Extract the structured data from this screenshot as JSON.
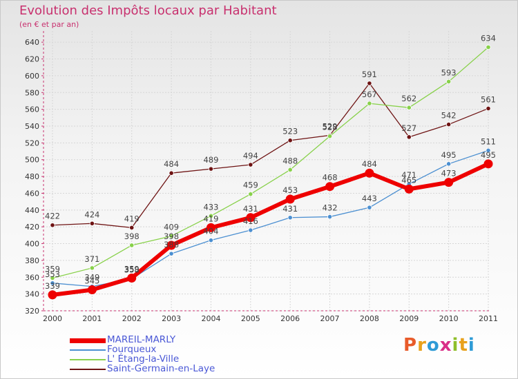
{
  "title": "Evolution des Impôts locaux par Habitant",
  "subtitle": "(en € et par an)",
  "logo": {
    "text": "Proxiti",
    "letter_colors": [
      "#e85b2a",
      "#e8a11c",
      "#2e9bd6",
      "#d92f87",
      "#8fbf2a",
      "#e8a11c",
      "#2e9bd6"
    ]
  },
  "chart_data": {
    "type": "line",
    "title": "Evolution des Impôts locaux par Habitant",
    "subtitle": "(en € et par an)",
    "x": [
      2000,
      2001,
      2002,
      2003,
      2004,
      2005,
      2006,
      2007,
      2008,
      2009,
      2010,
      2011
    ],
    "ylim": [
      320,
      650
    ],
    "yticks": [
      320,
      340,
      360,
      380,
      400,
      420,
      440,
      460,
      480,
      500,
      520,
      540,
      560,
      580,
      600,
      620,
      640
    ],
    "grid": true,
    "series": [
      {
        "name": "MAREIL-MARLY",
        "color": "#ee0000",
        "values": [
          339,
          345,
          359,
          398,
          419,
          431,
          453,
          468,
          484,
          465,
          473,
          495
        ]
      },
      {
        "name": "Fourqueux",
        "color": "#4b8fd1",
        "values": [
          353,
          349,
          358,
          388,
          404,
          416,
          431,
          432,
          443,
          471,
          495,
          511
        ]
      },
      {
        "name": "L' Étang-la-Ville",
        "color": "#88d14a",
        "values": [
          359,
          371,
          398,
          409,
          433,
          459,
          488,
          528,
          567,
          562,
          593,
          634
        ]
      },
      {
        "name": "Saint-Germain-en-Laye",
        "color": "#6e1313",
        "values": [
          422,
          424,
          419,
          484,
          489,
          494,
          523,
          529,
          591,
          527,
          542,
          561
        ]
      }
    ]
  }
}
